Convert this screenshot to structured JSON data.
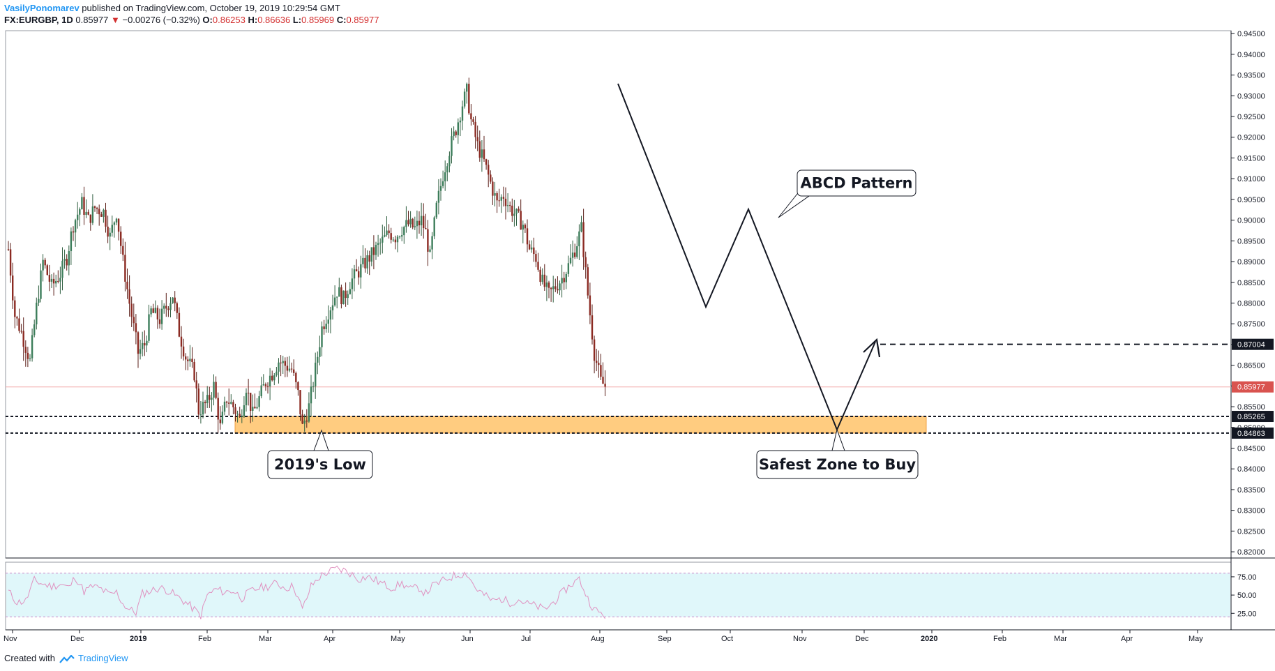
{
  "header": {
    "author": "VasilyPonomarev",
    "published": "published on TradingView.com, October 19, 2019 10:29:54 GMT",
    "symbol": "FX:EURGBP, 1D",
    "last": "0.85977",
    "change": "−0.00276 (−0.32%)",
    "open_label": "O:",
    "open": "0.86253",
    "high_label": "H:",
    "high": "0.86636",
    "low_label": "L:",
    "low": "0.85969",
    "close_label": "C:",
    "close": "0.85977"
  },
  "footer": {
    "created_with": "Created with",
    "brand": "TradingView"
  },
  "colors": {
    "up": "#26a69a",
    "down": "#c0392b",
    "up_body": "#3c7d5a",
    "down_body": "#8b2a22",
    "zone": "#ffcc80",
    "rsi_fill": "#e0f7fa",
    "rsi_line": "#e091c0",
    "price_badge": "#d9534f"
  },
  "chart_data": {
    "type": "candlestick",
    "y_axis": {
      "ylim": [
        0.8185,
        0.9457
      ],
      "ticks": [
        0.82,
        0.825,
        0.83,
        0.835,
        0.84,
        0.845,
        0.85,
        0.855,
        0.86,
        0.865,
        0.87,
        0.875,
        0.88,
        0.885,
        0.89,
        0.895,
        0.9,
        0.905,
        0.91,
        0.915,
        0.92,
        0.925,
        0.93,
        0.935,
        0.94,
        0.945
      ],
      "tick_labels": [
        "0.82000",
        "0.82500",
        "0.83000",
        "0.83500",
        "0.84000",
        "0.84500",
        "0.85000",
        "0.85500",
        "0.86000",
        "0.86500",
        "0.87000",
        "0.87500",
        "0.88000",
        "0.88500",
        "0.89000",
        "0.89500",
        "0.90000",
        "0.90500",
        "0.91000",
        "0.91500",
        "0.92000",
        "0.92500",
        "0.93000",
        "0.93500",
        "0.94000",
        "0.94500"
      ]
    },
    "x_axis": {
      "labels": [
        "Nov",
        "Dec",
        "2019",
        "Feb",
        "Mar",
        "Apr",
        "May",
        "Jun",
        "Jul",
        "Aug",
        "Sep",
        "Oct",
        "Nov",
        "Dec",
        "2020",
        "Feb",
        "Mar",
        "Apr",
        "May"
      ]
    },
    "price_path": [
      [
        0,
        0.893
      ],
      [
        3,
        0.877
      ],
      [
        6,
        0.873
      ],
      [
        10,
        0.866
      ],
      [
        13,
        0.879
      ],
      [
        16,
        0.89
      ],
      [
        20,
        0.884
      ],
      [
        24,
        0.887
      ],
      [
        27,
        0.891
      ],
      [
        30,
        0.899
      ],
      [
        34,
        0.904
      ],
      [
        37,
        0.9
      ],
      [
        40,
        0.903
      ],
      [
        44,
        0.902
      ],
      [
        47,
        0.896
      ],
      [
        50,
        0.902
      ],
      [
        53,
        0.89
      ],
      [
        56,
        0.88
      ],
      [
        60,
        0.868
      ],
      [
        63,
        0.87
      ],
      [
        66,
        0.878
      ],
      [
        70,
        0.876
      ],
      [
        73,
        0.879
      ],
      [
        76,
        0.882
      ],
      [
        79,
        0.873
      ],
      [
        82,
        0.867
      ],
      [
        86,
        0.863
      ],
      [
        88,
        0.854
      ],
      [
        92,
        0.856
      ],
      [
        95,
        0.86
      ],
      [
        98,
        0.85
      ],
      [
        101,
        0.857
      ],
      [
        104,
        0.855
      ],
      [
        107,
        0.852
      ],
      [
        110,
        0.86
      ],
      [
        113,
        0.853
      ],
      [
        116,
        0.857
      ],
      [
        119,
        0.861
      ],
      [
        122,
        0.863
      ],
      [
        125,
        0.866
      ],
      [
        128,
        0.865
      ],
      [
        131,
        0.864
      ],
      [
        134,
        0.858
      ],
      [
        136,
        0.85
      ],
      [
        139,
        0.855
      ],
      [
        142,
        0.864
      ],
      [
        145,
        0.874
      ],
      [
        148,
        0.878
      ],
      [
        152,
        0.883
      ],
      [
        155,
        0.881
      ],
      [
        158,
        0.885
      ],
      [
        161,
        0.887
      ],
      [
        164,
        0.889
      ],
      [
        167,
        0.891
      ],
      [
        170,
        0.893
      ],
      [
        173,
        0.895
      ],
      [
        176,
        0.897
      ],
      [
        179,
        0.896
      ],
      [
        182,
        0.898
      ],
      [
        185,
        0.899
      ],
      [
        188,
        0.898
      ],
      [
        191,
        0.9
      ],
      [
        193,
        0.897
      ],
      [
        195,
        0.891
      ],
      [
        198,
        0.903
      ],
      [
        201,
        0.911
      ],
      [
        204,
        0.917
      ],
      [
        207,
        0.922
      ],
      [
        210,
        0.928
      ],
      [
        212,
        0.931
      ],
      [
        214,
        0.924
      ],
      [
        217,
        0.918
      ],
      [
        220,
        0.914
      ],
      [
        223,
        0.909
      ],
      [
        226,
        0.904
      ],
      [
        229,
        0.906
      ],
      [
        232,
        0.903
      ],
      [
        235,
        0.901
      ],
      [
        238,
        0.899
      ],
      [
        241,
        0.893
      ],
      [
        244,
        0.891
      ],
      [
        247,
        0.885
      ],
      [
        250,
        0.882
      ],
      [
        253,
        0.884
      ],
      [
        256,
        0.886
      ],
      [
        259,
        0.889
      ],
      [
        262,
        0.893
      ],
      [
        265,
        0.898
      ],
      [
        268,
        0.882
      ],
      [
        271,
        0.868
      ],
      [
        274,
        0.861
      ],
      [
        276,
        0.86
      ]
    ],
    "levels": {
      "current": {
        "value": 0.85977,
        "label": "0.85977"
      },
      "target": {
        "value": 0.87004,
        "label": "0.87004"
      },
      "zone_top": {
        "value": 0.85265,
        "label": "0.85265"
      },
      "zone_bottom": {
        "value": 0.84863,
        "label": "0.84863"
      }
    },
    "annotations": [
      {
        "text": "ABCD Pattern"
      },
      {
        "text": "2019's Low"
      },
      {
        "text": "Safest Zone to Buy"
      }
    ],
    "rsi": {
      "ticks": [
        25,
        50,
        75
      ],
      "tick_labels": [
        "25.00",
        "50.00",
        "75.00"
      ],
      "band": [
        20,
        80
      ],
      "path": [
        [
          0,
          55
        ],
        [
          4,
          40
        ],
        [
          8,
          42
        ],
        [
          12,
          70
        ],
        [
          16,
          65
        ],
        [
          20,
          62
        ],
        [
          24,
          65
        ],
        [
          28,
          60
        ],
        [
          31,
          75
        ],
        [
          35,
          55
        ],
        [
          39,
          62
        ],
        [
          43,
          58
        ],
        [
          47,
          50
        ],
        [
          50,
          54
        ],
        [
          53,
          38
        ],
        [
          56,
          30
        ],
        [
          59,
          26
        ],
        [
          62,
          52
        ],
        [
          66,
          56
        ],
        [
          70,
          60
        ],
        [
          74,
          56
        ],
        [
          78,
          48
        ],
        [
          82,
          40
        ],
        [
          86,
          30
        ],
        [
          89,
          22
        ],
        [
          92,
          50
        ],
        [
          96,
          58
        ],
        [
          100,
          54
        ],
        [
          104,
          56
        ],
        [
          108,
          46
        ],
        [
          112,
          55
        ],
        [
          116,
          60
        ],
        [
          120,
          62
        ],
        [
          124,
          66
        ],
        [
          128,
          60
        ],
        [
          132,
          62
        ],
        [
          136,
          30
        ],
        [
          140,
          62
        ],
        [
          144,
          75
        ],
        [
          148,
          82
        ],
        [
          152,
          86
        ],
        [
          155,
          84
        ],
        [
          158,
          80
        ],
        [
          162,
          72
        ],
        [
          166,
          75
        ],
        [
          170,
          70
        ],
        [
          174,
          64
        ],
        [
          178,
          60
        ],
        [
          182,
          66
        ],
        [
          186,
          58
        ],
        [
          190,
          60
        ],
        [
          193,
          52
        ],
        [
          196,
          62
        ],
        [
          200,
          68
        ],
        [
          204,
          74
        ],
        [
          208,
          78
        ],
        [
          212,
          80
        ],
        [
          216,
          60
        ],
        [
          220,
          50
        ],
        [
          224,
          42
        ],
        [
          228,
          45
        ],
        [
          232,
          40
        ],
        [
          236,
          44
        ],
        [
          240,
          38
        ],
        [
          244,
          35
        ],
        [
          248,
          30
        ],
        [
          252,
          40
        ],
        [
          256,
          52
        ],
        [
          260,
          64
        ],
        [
          264,
          72
        ],
        [
          268,
          45
        ],
        [
          271,
          30
        ],
        [
          274,
          25
        ],
        [
          276,
          22
        ]
      ]
    }
  }
}
